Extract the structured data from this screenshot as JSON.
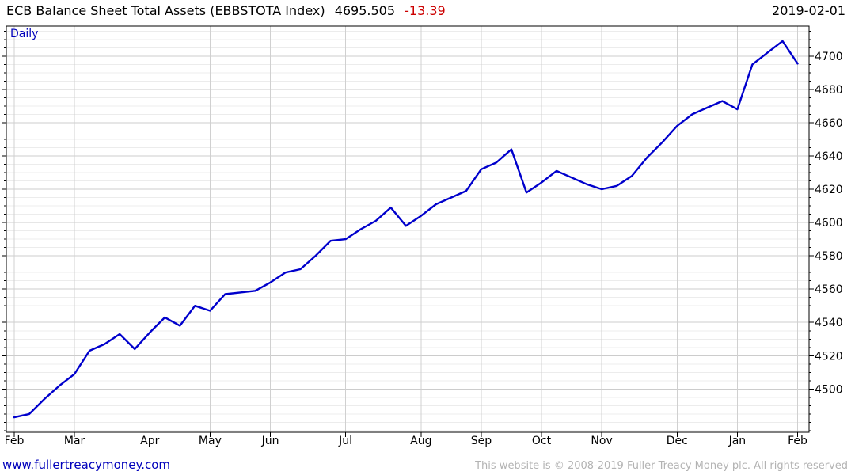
{
  "header": {
    "title": "ECB Balance Sheet Total Assets (EBBSTOTA Index)",
    "price": "4695.505",
    "change": "-13.39",
    "date": "2019-02-01"
  },
  "plot_label": "Daily",
  "footer": {
    "site": "www.fullertreacymoney.com",
    "copyright": "This website is © 2008-2019 Fuller Treacy Money plc. All rights reserved"
  },
  "colors": {
    "line": "#0000cc",
    "accent_text_blue": "#0000bb",
    "change_negative": "#cc0000",
    "grid_major": "#cccccc",
    "grid_minor": "#ececec",
    "grid_vertical": "#d0d0d0",
    "axis": "#000000",
    "footer_gray": "#b3b3b3"
  },
  "chart_data": {
    "type": "line",
    "title": "ECB Balance Sheet Total Assets (EBBSTOTA Index)",
    "frequency_label": "Daily",
    "last_value": 4695.505,
    "change": -13.39,
    "as_of_date": "2019-02-01",
    "legend_position": "none",
    "grid": true,
    "ylim": [
      4474,
      4718
    ],
    "y_major_step": 20,
    "y_minor_step": 5,
    "y_tick_labels": [
      "4500",
      "4520",
      "4540",
      "4560",
      "4580",
      "4600",
      "4620",
      "4640",
      "4660",
      "4680",
      "4700"
    ],
    "x_tick_labels": [
      "Feb",
      "Mar",
      "Apr",
      "May",
      "Jun",
      "Jul",
      "Aug",
      "Sep",
      "Oct",
      "Nov",
      "Dec",
      "Jan",
      "Feb"
    ],
    "x_tick_indices": [
      0,
      4,
      9,
      13,
      17,
      22,
      27,
      31,
      35,
      39,
      44,
      48,
      52
    ],
    "series": [
      {
        "name": "EBBSTOTA Index",
        "color": "#0000cc",
        "values": [
          4483,
          4485,
          4494,
          4502,
          4509,
          4523,
          4527,
          4533,
          4524,
          4534,
          4543,
          4538,
          4550,
          4547,
          4557,
          4558,
          4559,
          4564,
          4570,
          4572,
          4580,
          4589,
          4590,
          4596,
          4601,
          4609,
          4598,
          4604,
          4611,
          4615,
          4619,
          4632,
          4636,
          4644,
          4618,
          4624,
          4631,
          4627,
          4623,
          4620,
          4622,
          4628,
          4639,
          4648,
          4658,
          4665,
          4669,
          4673,
          4668,
          4695,
          4702,
          4709,
          4695.505
        ]
      }
    ]
  }
}
